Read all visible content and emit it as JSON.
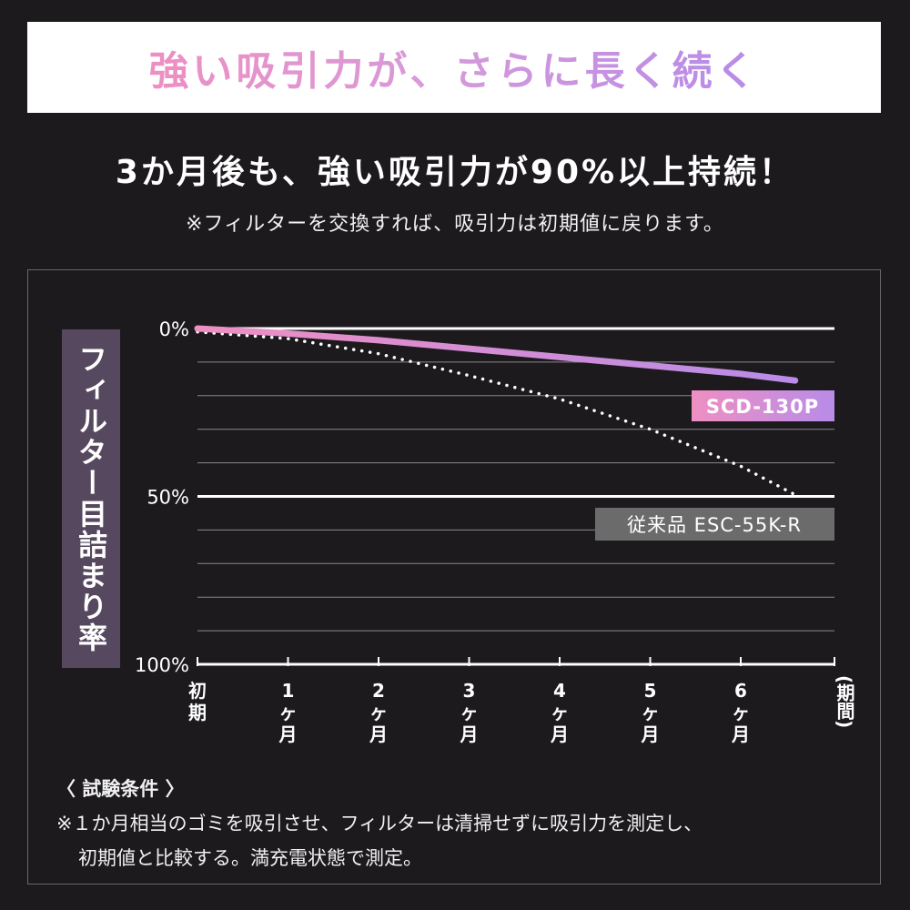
{
  "banner": {
    "title": "強い吸引力が、さらに長く続く"
  },
  "headline": "3か月後も、強い吸引力が90%以上持続！",
  "subnote": "※フィルターを交換すれば、吸引力は初期値に戻ります。",
  "chart_data": {
    "type": "line",
    "title": "",
    "ylabel": "フィルター目詰まり率",
    "xlabel": "(期間)",
    "categories": [
      "初期",
      "1ヶ月",
      "2ヶ月",
      "3ヶ月",
      "4ヶ月",
      "5ヶ月",
      "6ヶ月"
    ],
    "x_tick_labels": [
      [
        "初",
        "期"
      ],
      [
        "1",
        "ヶ",
        "月"
      ],
      [
        "2",
        "ヶ",
        "月"
      ],
      [
        "3",
        "ヶ",
        "月"
      ],
      [
        "4",
        "ヶ",
        "月"
      ],
      [
        "5",
        "ヶ",
        "月"
      ],
      [
        "6",
        "ヶ",
        "月"
      ]
    ],
    "xlim": [
      0,
      7
    ],
    "ylim": [
      0,
      100
    ],
    "y_inverted": true,
    "y_tick_labels": [
      {
        "value": 0,
        "label": "0%"
      },
      {
        "value": 50,
        "label": "50%"
      },
      {
        "value": 100,
        "label": "100%"
      }
    ],
    "grid": true,
    "grid_step": 10,
    "series": [
      {
        "name": "SCD-130P",
        "style": "solid-gradient",
        "color_start": "#ee8fc2",
        "color_end": "#b88ce8",
        "x": [
          0,
          1,
          2,
          3,
          4,
          5,
          6,
          6.6
        ],
        "values": [
          0,
          1.5,
          3.5,
          6,
          8.5,
          11,
          13.5,
          15.5
        ]
      },
      {
        "name": "従来品 ESC-55K-R",
        "style": "dotted",
        "color": "#ffffff",
        "label_bg": "#6b6b6b",
        "x": [
          0,
          1,
          2,
          3,
          4,
          5,
          6,
          6.6
        ],
        "values": [
          1,
          3,
          7.5,
          14,
          21,
          30,
          41,
          49.5
        ]
      }
    ]
  },
  "conditions": {
    "title": "〈 試験条件 〉",
    "line1": "※１か月相当のゴミを吸引させ、フィルターは清掃せずに吸引力を測定し、",
    "line2": "初期値と比較する。満充電状態で測定。"
  }
}
